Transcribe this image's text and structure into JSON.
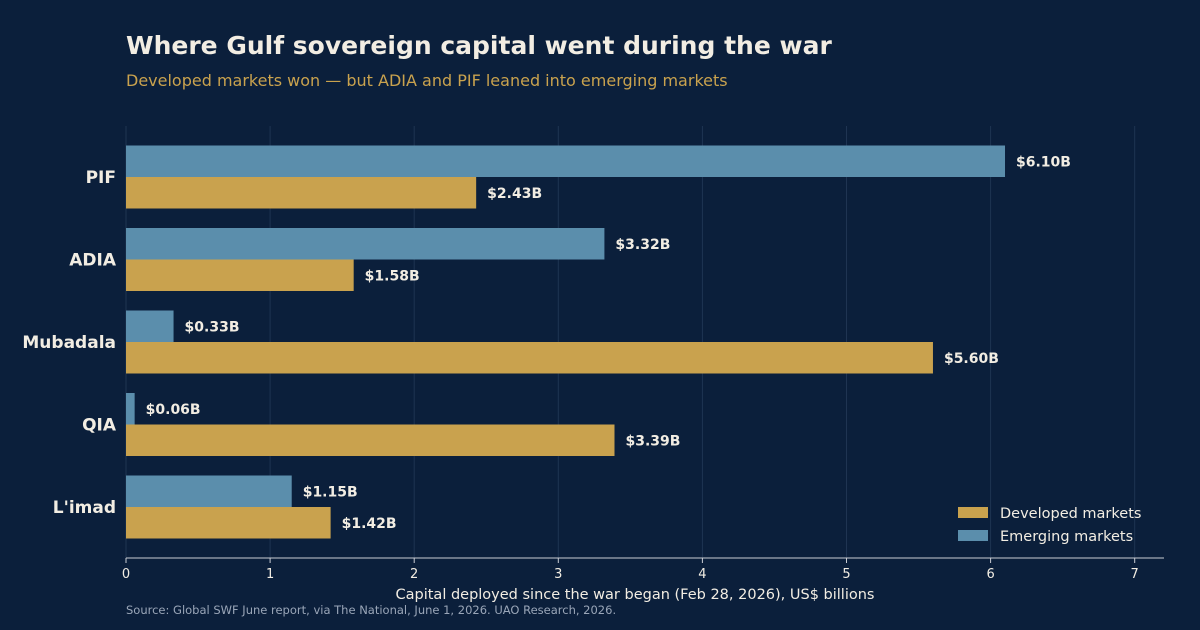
{
  "title": "Where Gulf sovereign capital went during the war",
  "subtitle": "Developed markets won — but ADIA and PIF leaned into emerging markets",
  "source": "Source: Global SWF June report, via The National, June 1, 2026.  UAO Research, 2026.",
  "colors": {
    "background": "#0b1f3b",
    "developed": "#c9a24e",
    "emerging": "#5b8eac",
    "text": "#f2ede3",
    "subtitle": "#c9a24e"
  },
  "chart_data": {
    "type": "bar",
    "orientation": "horizontal",
    "categories": [
      "PIF",
      "ADIA",
      "Mubadala",
      "QIA",
      "L'imad"
    ],
    "series": [
      {
        "name": "Emerging markets",
        "values": [
          6.1,
          3.32,
          0.33,
          0.06,
          1.15
        ],
        "labels": [
          "$6.10B",
          "$3.32B",
          "$0.33B",
          "$0.06B",
          "$1.15B"
        ]
      },
      {
        "name": "Developed markets",
        "values": [
          2.43,
          1.58,
          5.6,
          3.39,
          1.42
        ],
        "labels": [
          "$2.43B",
          "$1.58B",
          "$5.60B",
          "$3.39B",
          "$1.42B"
        ]
      }
    ],
    "legend_order": [
      "Developed markets",
      "Emerging markets"
    ],
    "legend_position": "bottom-right",
    "xlabel": "Capital deployed since the war began (Feb 28, 2026), US$ billions",
    "ylabel": "",
    "xlim": [
      0,
      7.2
    ],
    "xticks": [
      "0",
      "1",
      "2",
      "3",
      "4",
      "5",
      "6",
      "7"
    ],
    "grid": true
  }
}
